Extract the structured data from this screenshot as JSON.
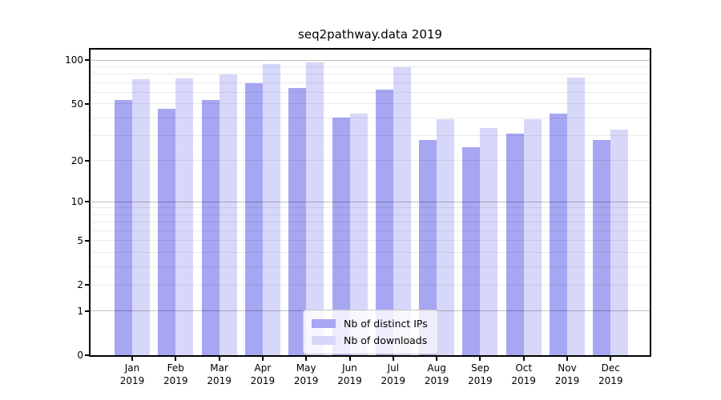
{
  "title": "seq2pathway.data 2019",
  "legend": {
    "items": [
      {
        "label": "Nb of distinct IPs",
        "color": "#a6a6f2"
      },
      {
        "label": "Nb of downloads",
        "color": "#d7d7f9"
      }
    ],
    "location": "lower center"
  },
  "axes": {
    "y_tick_labels": [
      "100",
      "50",
      "20",
      "10",
      "5",
      "2",
      "1",
      "0"
    ],
    "x_tick_year": "2019"
  },
  "chart_data": {
    "type": "bar",
    "title": "seq2pathway.data 2019",
    "categories": [
      "Jan",
      "Feb",
      "Mar",
      "Apr",
      "May",
      "Jun",
      "Jul",
      "Aug",
      "Sep",
      "Oct",
      "Nov",
      "Dec"
    ],
    "category_year": "2019",
    "series": [
      {
        "name": "Nb of distinct IPs",
        "color": "#a6a6f2",
        "values": [
          53,
          46,
          53,
          69,
          64,
          40,
          63,
          28,
          25,
          31,
          43,
          28
        ]
      },
      {
        "name": "Nb of downloads",
        "color": "#d7d7f9",
        "values": [
          74,
          75,
          80,
          94,
          96,
          43,
          89,
          39,
          34,
          39,
          76,
          33
        ]
      }
    ],
    "xlabel": "",
    "ylabel": "",
    "yscale": "log10(1+value)",
    "ylim": [
      0,
      118
    ],
    "yticks_labeled": [
      0,
      1,
      2,
      5,
      10,
      20,
      50,
      100
    ],
    "grid_major": [
      1,
      10,
      100
    ],
    "grid_minor": [
      2,
      3,
      4,
      5,
      6,
      7,
      8,
      9,
      20,
      30,
      40,
      50,
      60,
      70,
      80,
      90
    ],
    "grid": "horizontal",
    "legend_position": "lower center"
  }
}
